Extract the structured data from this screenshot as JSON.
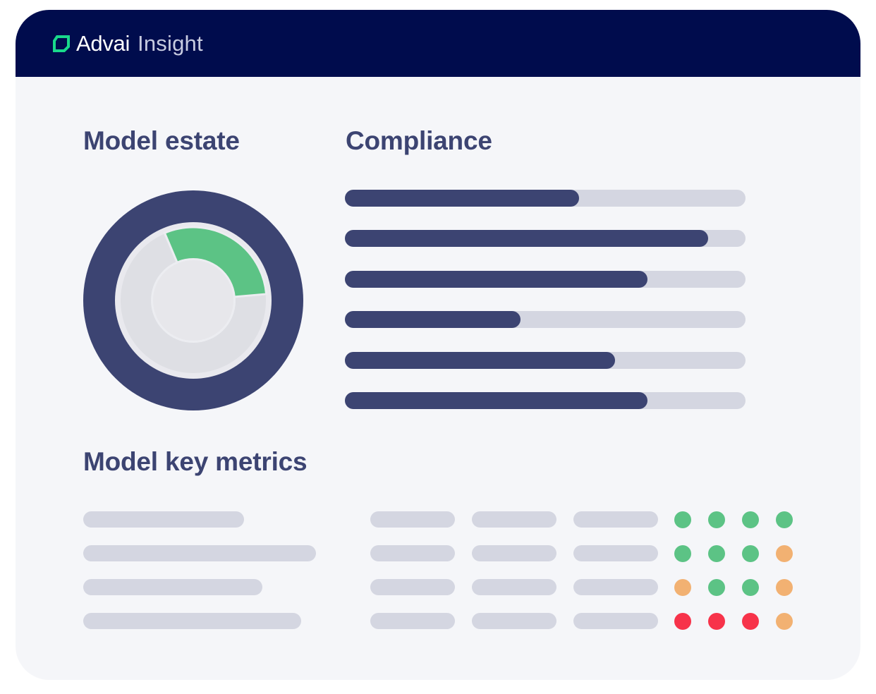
{
  "header": {
    "brand_name": "Advai",
    "brand_sub": "Insight",
    "logo_icon": "square-bracket-logo-icon"
  },
  "colors": {
    "navy": "#000c4d",
    "ink": "#3c4472",
    "track": "#d4d6e1",
    "green": "#5cc385",
    "orange": "#f2b172",
    "red": "#f7334a",
    "donut_grey": "#e5e5ea"
  },
  "model_estate": {
    "title": "Model estate",
    "donut": {
      "outer_ring": "total models",
      "highlight_fraction": 0.3
    }
  },
  "compliance": {
    "title": "Compliance",
    "bars": [
      0.585,
      0.907,
      0.755,
      0.438,
      0.675,
      0.755
    ]
  },
  "key_metrics": {
    "title": "Model key metrics",
    "rows": [
      {
        "status": [
          "green",
          "green",
          "green",
          "green"
        ]
      },
      {
        "status": [
          "green",
          "green",
          "green",
          "orange"
        ]
      },
      {
        "status": [
          "orange",
          "green",
          "green",
          "orange"
        ]
      },
      {
        "status": [
          "red",
          "red",
          "red",
          "orange"
        ]
      }
    ]
  }
}
